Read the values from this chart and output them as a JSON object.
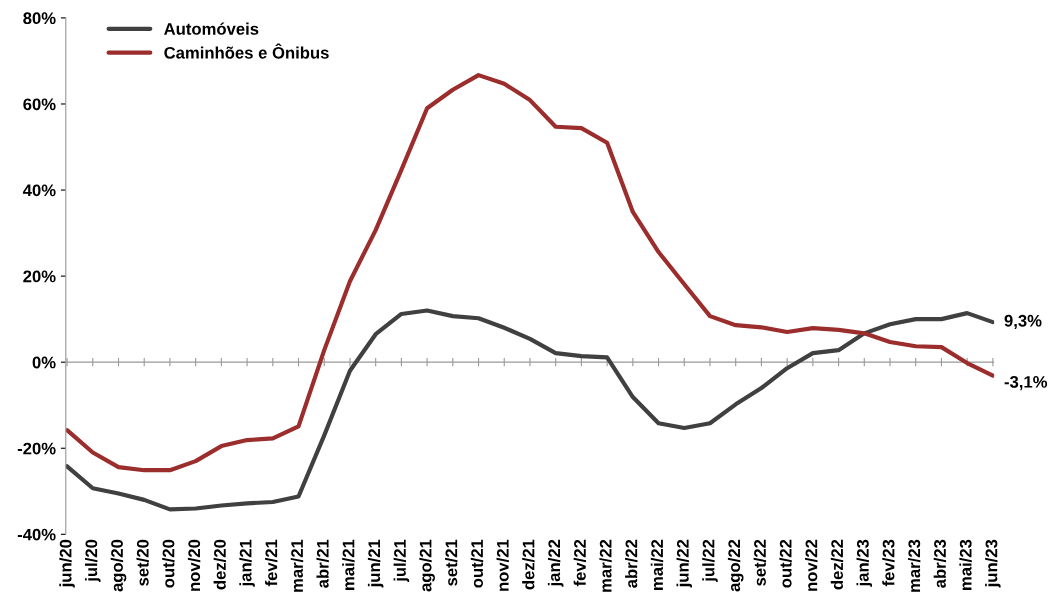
{
  "chart_data": {
    "type": "line",
    "categories": [
      "jun/20",
      "jul/20",
      "ago/20",
      "set/20",
      "out/20",
      "nov/20",
      "dez/20",
      "jan/21",
      "fev/21",
      "mar/21",
      "abr/21",
      "mai/21",
      "jun/21",
      "jul/21",
      "ago/21",
      "set/21",
      "out/21",
      "nov/21",
      "dez/21",
      "jan/22",
      "fev/22",
      "mar/22",
      "abr/22",
      "mai/22",
      "jun/22",
      "jul/22",
      "ago/22",
      "set/22",
      "out/22",
      "nov/22",
      "dez/22",
      "jan/23",
      "fev/23",
      "mar/23",
      "abr/23",
      "mai/23",
      "jun/23"
    ],
    "series": [
      {
        "name": "Automóveis",
        "color": "#404040",
        "values": [
          -24.2,
          -29.3,
          -30.5,
          -32,
          -34.2,
          -34,
          -33.3,
          -32.8,
          -32.5,
          -31.2,
          -17,
          -2,
          6.5,
          11.2,
          12,
          10.7,
          10.2,
          8,
          5.4,
          2.1,
          1.4,
          1.1,
          -8.1,
          -14.2,
          -15.3,
          -14.2,
          -9.8,
          -6,
          -1.4,
          2.1,
          2.8,
          6.7,
          8.8,
          10,
          10,
          11.4,
          9.3
        ],
        "value_labels": [
          null,
          null,
          null,
          null,
          null,
          null,
          null,
          null,
          null,
          null,
          null,
          null,
          null,
          null,
          null,
          null,
          null,
          null,
          null,
          null,
          null,
          null,
          null,
          null,
          null,
          null,
          null,
          null,
          null,
          null,
          null,
          null,
          null,
          null,
          null,
          null,
          "9,3%"
        ]
      },
      {
        "name": "Caminhões e Ônibus",
        "color": "#9b2d2d",
        "values": [
          -15.8,
          -21,
          -24.4,
          -25.1,
          -25.1,
          -23,
          -19.5,
          -18.1,
          -17.7,
          -14.9,
          2.8,
          18.8,
          30.7,
          44.7,
          59,
          63.3,
          66.7,
          64.7,
          60.9,
          54.7,
          54.4,
          51,
          34.9,
          25.6,
          18.1,
          10.7,
          8.6,
          8.1,
          7,
          7.9,
          7.5,
          6.7,
          4.7,
          3.7,
          3.5,
          -0.2,
          -3.1
        ],
        "value_labels": [
          null,
          null,
          null,
          null,
          null,
          null,
          null,
          null,
          null,
          null,
          null,
          null,
          null,
          null,
          null,
          null,
          null,
          null,
          null,
          null,
          null,
          null,
          null,
          null,
          null,
          null,
          null,
          null,
          null,
          null,
          null,
          null,
          null,
          null,
          null,
          null,
          "-3,1%"
        ]
      }
    ],
    "ylim": [
      -40,
      80
    ],
    "yticks": [
      {
        "value": -40,
        "label": "-40%"
      },
      {
        "value": -20,
        "label": "-20%"
      },
      {
        "value": 0,
        "label": "0%"
      },
      {
        "value": 20,
        "label": "20%"
      },
      {
        "value": 40,
        "label": "40%"
      },
      {
        "value": 60,
        "label": "60%"
      },
      {
        "value": 80,
        "label": "80%"
      }
    ],
    "ref_lines": [
      {
        "axis": "y",
        "value": 0,
        "color": "#999999"
      }
    ],
    "grid": false,
    "legend": "top left",
    "marker": "none",
    "line_style": "solid"
  }
}
